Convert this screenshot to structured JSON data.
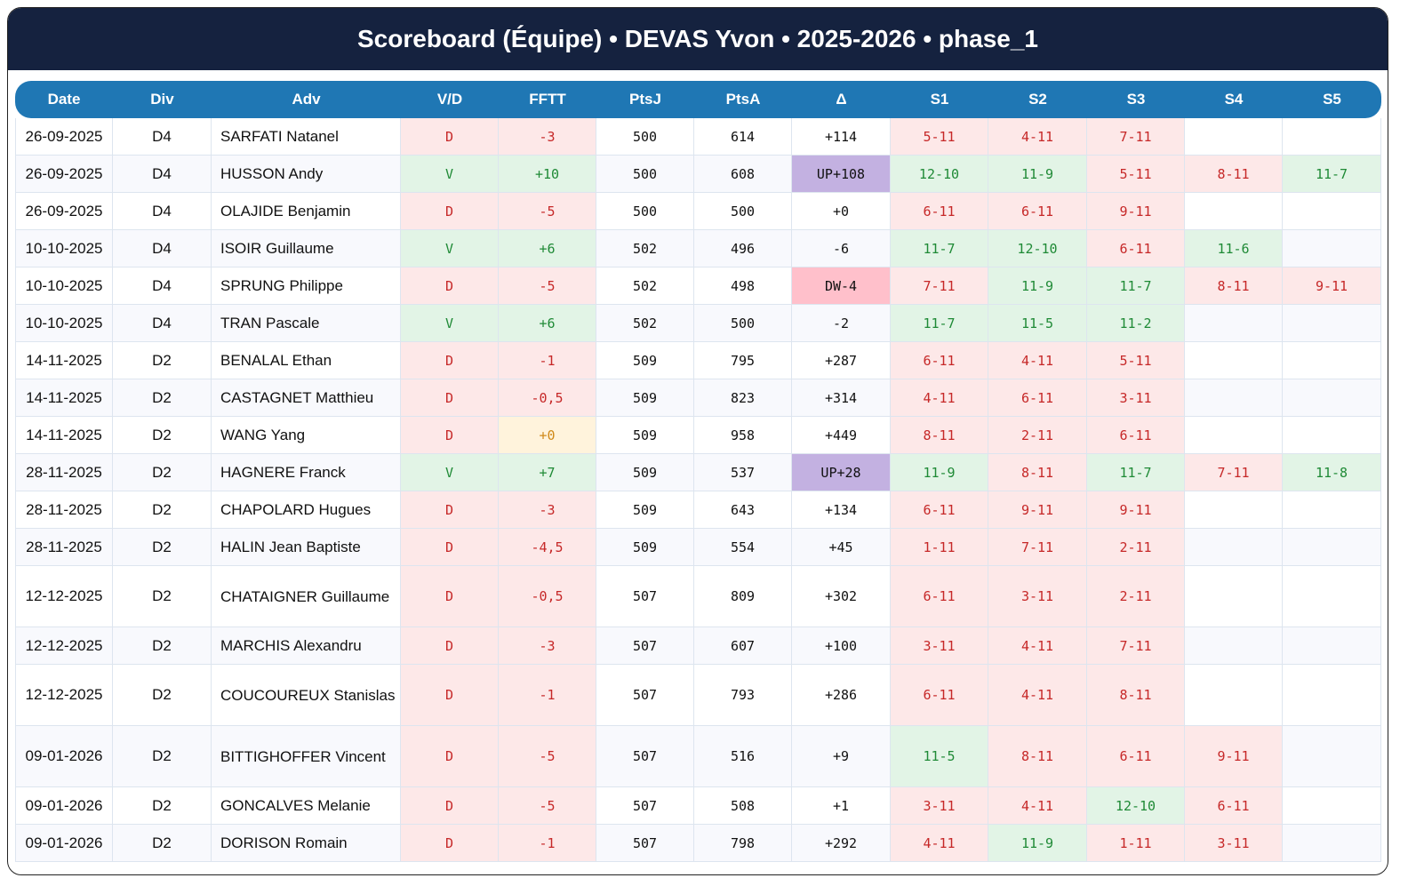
{
  "title": "Scoreboard (Équipe) • DEVAS Yvon • 2025-2026 • phase_1",
  "columns": [
    "Date",
    "Div",
    "Adv",
    "V/D",
    "FFTT",
    "PtsJ",
    "PtsA",
    "Δ",
    "S1",
    "S2",
    "S3",
    "S4",
    "S5"
  ],
  "colors": {
    "header": "#15223f",
    "table_header": "#1f77b4",
    "win": "#1f8a36",
    "loss": "#c62828",
    "up": "#c3b1e1",
    "dw": "#ffc0cb"
  },
  "rows": [
    {
      "date": "26-09-2025",
      "div": "D4",
      "adv": "SARFATI Natanel",
      "vd": "D",
      "fftt": "-3",
      "ptsj": "500",
      "ptsa": "614",
      "delta": "+114",
      "sets": [
        "5-11",
        "4-11",
        "7-11",
        "",
        ""
      ]
    },
    {
      "date": "26-09-2025",
      "div": "D4",
      "adv": "HUSSON Andy",
      "vd": "V",
      "fftt": "+10",
      "ptsj": "500",
      "ptsa": "608",
      "delta": "UP+108",
      "sets": [
        "12-10",
        "11-9",
        "5-11",
        "8-11",
        "11-7"
      ]
    },
    {
      "date": "26-09-2025",
      "div": "D4",
      "adv": "OLAJIDE Benjamin",
      "vd": "D",
      "fftt": "-5",
      "ptsj": "500",
      "ptsa": "500",
      "delta": "+0",
      "sets": [
        "6-11",
        "6-11",
        "9-11",
        "",
        ""
      ]
    },
    {
      "date": "10-10-2025",
      "div": "D4",
      "adv": "ISOIR Guillaume",
      "vd": "V",
      "fftt": "+6",
      "ptsj": "502",
      "ptsa": "496",
      "delta": "-6",
      "sets": [
        "11-7",
        "12-10",
        "6-11",
        "11-6",
        ""
      ]
    },
    {
      "date": "10-10-2025",
      "div": "D4",
      "adv": "SPRUNG Philippe",
      "vd": "D",
      "fftt": "-5",
      "ptsj": "502",
      "ptsa": "498",
      "delta": "DW-4",
      "sets": [
        "7-11",
        "11-9",
        "11-7",
        "8-11",
        "9-11"
      ]
    },
    {
      "date": "10-10-2025",
      "div": "D4",
      "adv": "TRAN Pascale",
      "vd": "V",
      "fftt": "+6",
      "ptsj": "502",
      "ptsa": "500",
      "delta": "-2",
      "sets": [
        "11-7",
        "11-5",
        "11-2",
        "",
        ""
      ]
    },
    {
      "date": "14-11-2025",
      "div": "D2",
      "adv": "BENALAL Ethan",
      "vd": "D",
      "fftt": "-1",
      "ptsj": "509",
      "ptsa": "795",
      "delta": "+287",
      "sets": [
        "6-11",
        "4-11",
        "5-11",
        "",
        ""
      ]
    },
    {
      "date": "14-11-2025",
      "div": "D2",
      "adv": "CASTAGNET Matthieu",
      "vd": "D",
      "fftt": "-0,5",
      "ptsj": "509",
      "ptsa": "823",
      "delta": "+314",
      "sets": [
        "4-11",
        "6-11",
        "3-11",
        "",
        ""
      ]
    },
    {
      "date": "14-11-2025",
      "div": "D2",
      "adv": "WANG Yang",
      "vd": "D",
      "fftt": "+0",
      "ptsj": "509",
      "ptsa": "958",
      "delta": "+449",
      "sets": [
        "8-11",
        "2-11",
        "6-11",
        "",
        ""
      ]
    },
    {
      "date": "28-11-2025",
      "div": "D2",
      "adv": "HAGNERE Franck",
      "vd": "V",
      "fftt": "+7",
      "ptsj": "509",
      "ptsa": "537",
      "delta": "UP+28",
      "sets": [
        "11-9",
        "8-11",
        "11-7",
        "7-11",
        "11-8"
      ]
    },
    {
      "date": "28-11-2025",
      "div": "D2",
      "adv": "CHAPOLARD Hugues",
      "vd": "D",
      "fftt": "-3",
      "ptsj": "509",
      "ptsa": "643",
      "delta": "+134",
      "sets": [
        "6-11",
        "9-11",
        "9-11",
        "",
        ""
      ]
    },
    {
      "date": "28-11-2025",
      "div": "D2",
      "adv": "HALIN Jean Baptiste",
      "vd": "D",
      "fftt": "-4,5",
      "ptsj": "509",
      "ptsa": "554",
      "delta": "+45",
      "sets": [
        "1-11",
        "7-11",
        "2-11",
        "",
        ""
      ]
    },
    {
      "date": "12-12-2025",
      "div": "D2",
      "adv": "CHATAIGNER Guillaume",
      "vd": "D",
      "fftt": "-0,5",
      "ptsj": "507",
      "ptsa": "809",
      "delta": "+302",
      "sets": [
        "6-11",
        "3-11",
        "2-11",
        "",
        ""
      ]
    },
    {
      "date": "12-12-2025",
      "div": "D2",
      "adv": "MARCHIS Alexandru",
      "vd": "D",
      "fftt": "-3",
      "ptsj": "507",
      "ptsa": "607",
      "delta": "+100",
      "sets": [
        "3-11",
        "4-11",
        "7-11",
        "",
        ""
      ]
    },
    {
      "date": "12-12-2025",
      "div": "D2",
      "adv": "COUCOUREUX Stanislas",
      "vd": "D",
      "fftt": "-1",
      "ptsj": "507",
      "ptsa": "793",
      "delta": "+286",
      "sets": [
        "6-11",
        "4-11",
        "8-11",
        "",
        ""
      ]
    },
    {
      "date": "09-01-2026",
      "div": "D2",
      "adv": "BITTIGHOFFER Vincent",
      "vd": "D",
      "fftt": "-5",
      "ptsj": "507",
      "ptsa": "516",
      "delta": "+9",
      "sets": [
        "11-5",
        "8-11",
        "6-11",
        "9-11",
        ""
      ]
    },
    {
      "date": "09-01-2026",
      "div": "D2",
      "adv": "GONCALVES Melanie",
      "vd": "D",
      "fftt": "-5",
      "ptsj": "507",
      "ptsa": "508",
      "delta": "+1",
      "sets": [
        "3-11",
        "4-11",
        "12-10",
        "6-11",
        ""
      ]
    },
    {
      "date": "09-01-2026",
      "div": "D2",
      "adv": "DORISON Romain",
      "vd": "D",
      "fftt": "-1",
      "ptsj": "507",
      "ptsa": "798",
      "delta": "+292",
      "sets": [
        "4-11",
        "11-9",
        "1-11",
        "3-11",
        ""
      ]
    }
  ]
}
